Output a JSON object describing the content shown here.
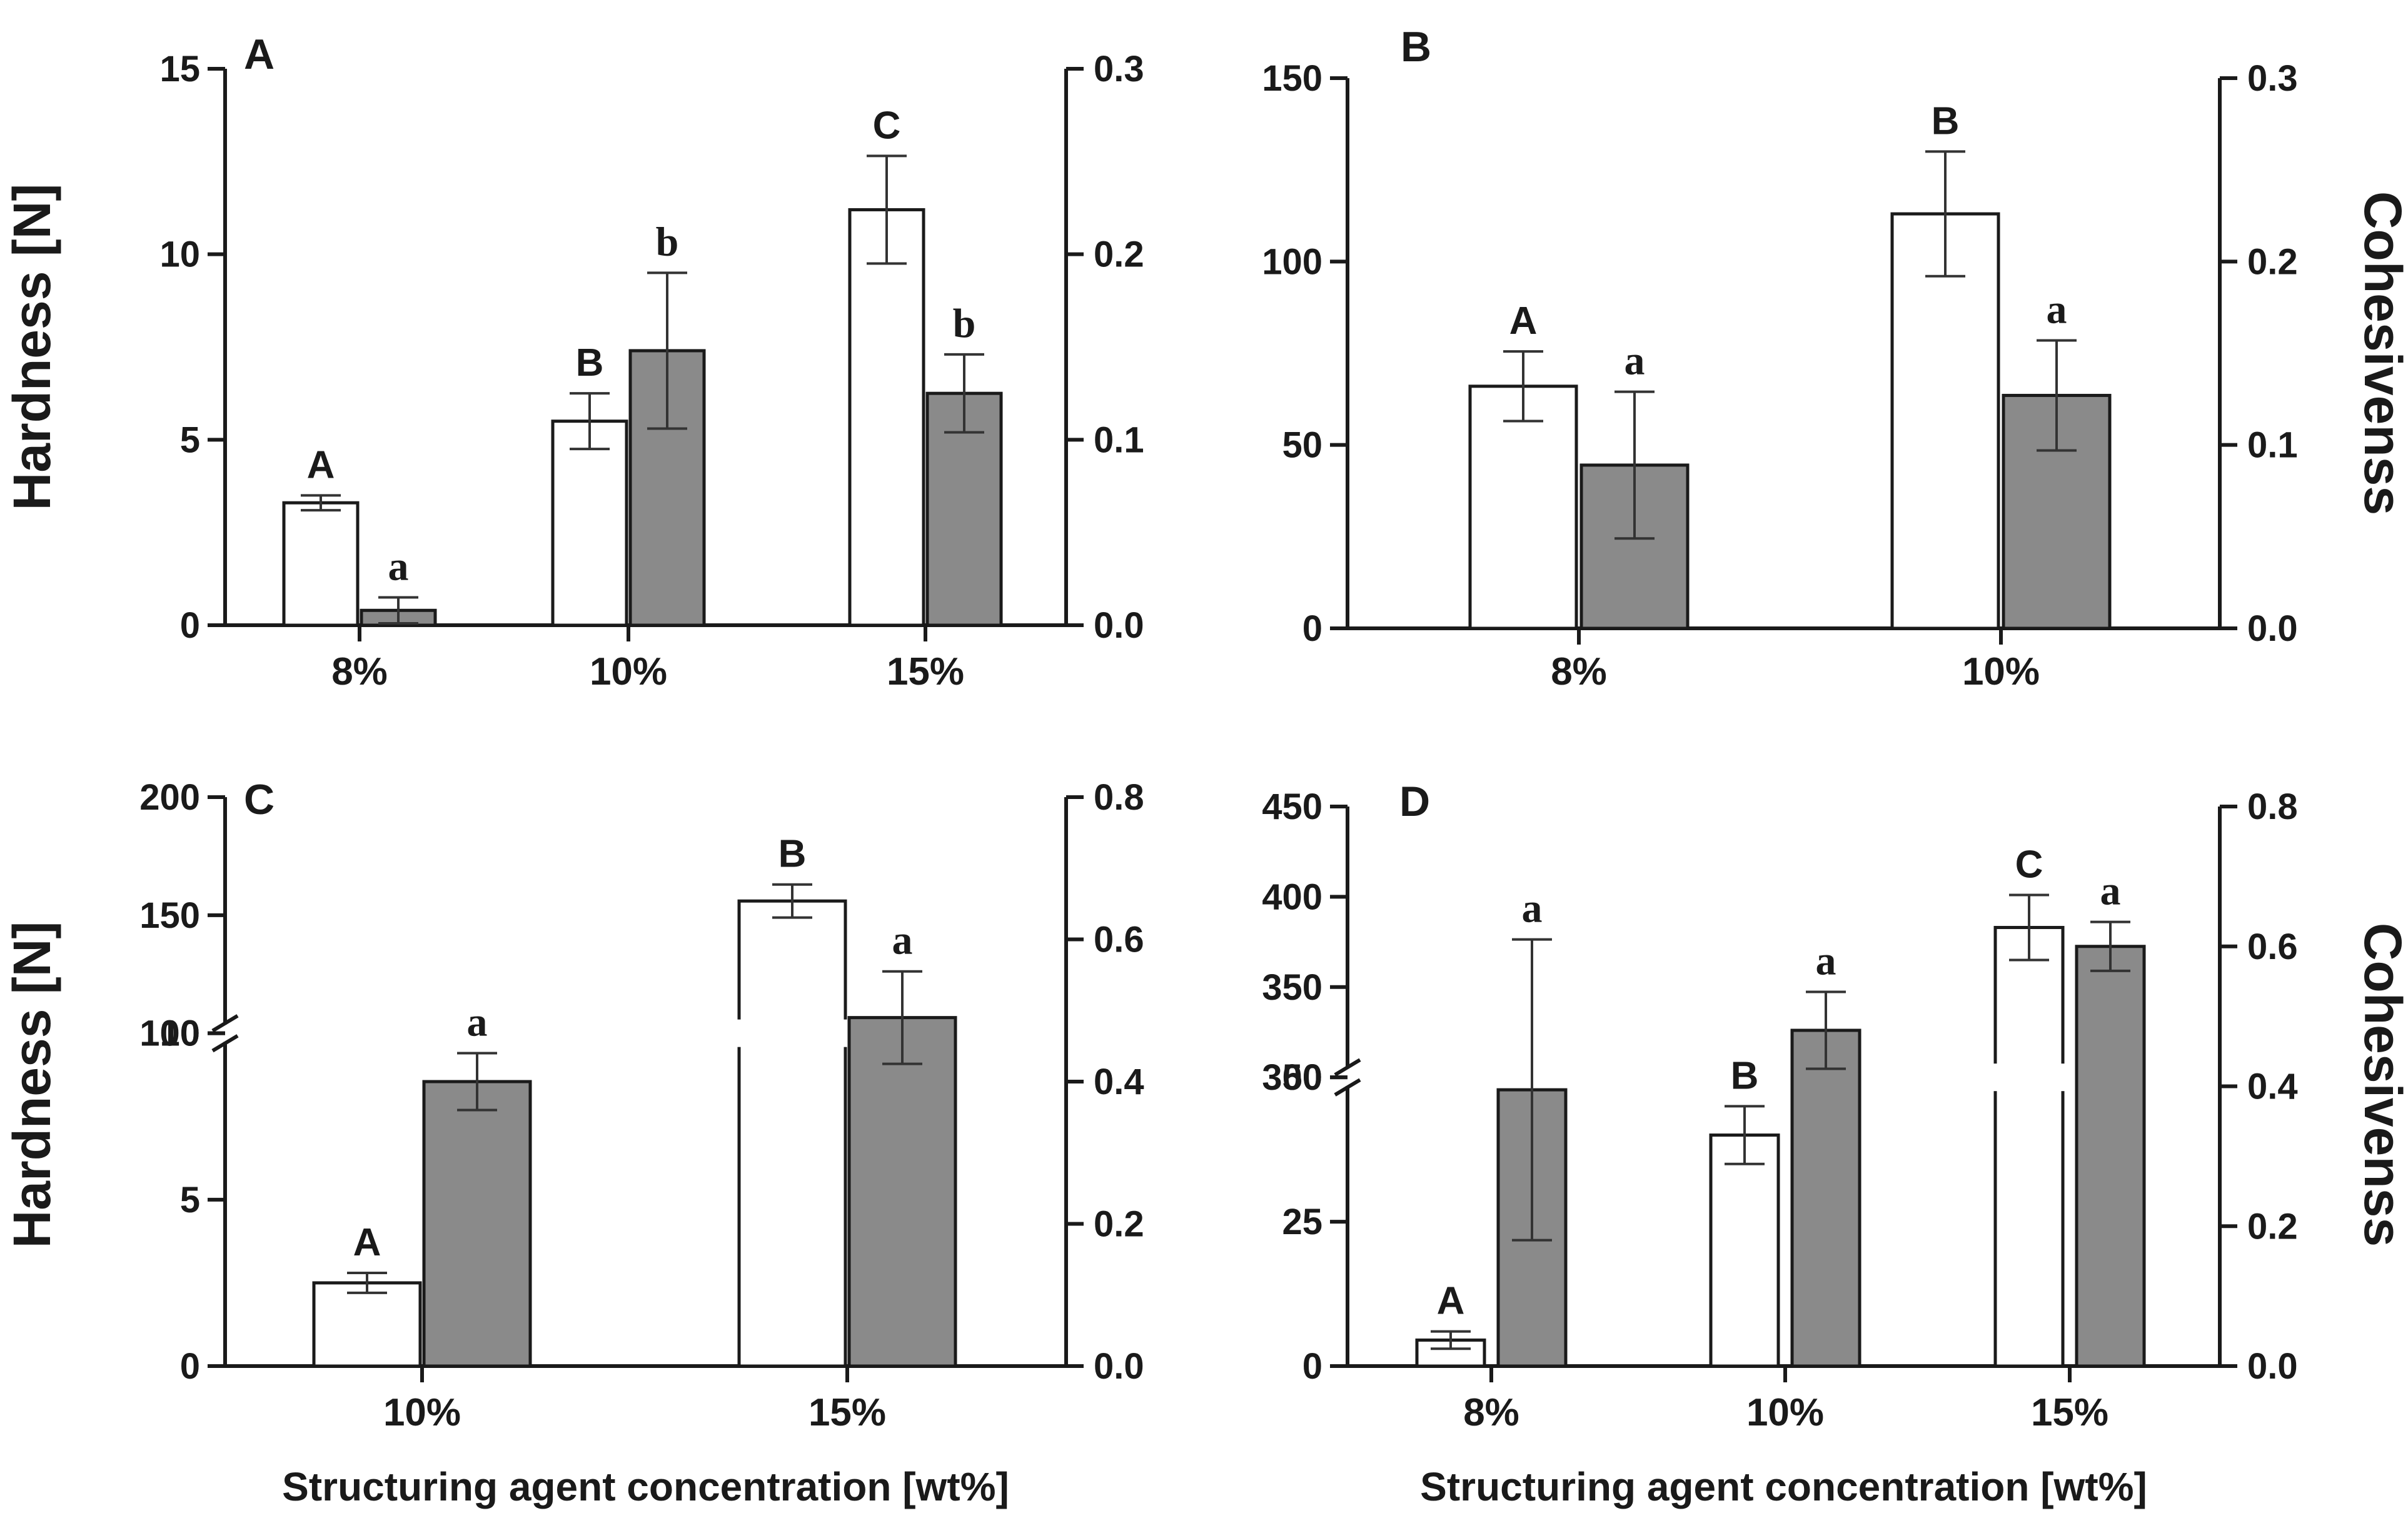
{
  "chart_data": [
    {
      "type": "bar",
      "panel_label": "A",
      "categories": [
        "8%",
        "10%",
        "15%"
      ],
      "ylabel_left": "Hardness [N]",
      "ylabel_right": "",
      "xlabel": "",
      "ylim_left": [
        0,
        15
      ],
      "yticks_left": [
        "0",
        "5",
        "10",
        "15"
      ],
      "ylim_right": [
        0,
        0.3
      ],
      "yticks_right": [
        "0.0",
        "0.1",
        "0.2",
        "0.3"
      ],
      "series": [
        {
          "axis": "left",
          "color": "#ffffff",
          "values": [
            3.3,
            5.5,
            11.2
          ],
          "errors": [
            0.2,
            0.75,
            1.45
          ],
          "labels": [
            "A",
            "B",
            "C"
          ]
        },
        {
          "axis": "right",
          "color": "#8a8a8a",
          "values": [
            0.008,
            0.148,
            0.125
          ],
          "errors": [
            0.007,
            0.042,
            0.021
          ],
          "labels": [
            "a",
            "b",
            "b"
          ]
        }
      ]
    },
    {
      "type": "bar",
      "panel_label": "B",
      "categories": [
        "8%",
        "10%"
      ],
      "ylabel_left": "",
      "ylabel_right": "Cohesivenss",
      "xlabel": "",
      "ylim_left": [
        0,
        150
      ],
      "yticks_left": [
        "0",
        "50",
        "100",
        "150"
      ],
      "ylim_right": [
        0,
        0.3
      ],
      "yticks_right": [
        "0.0",
        "0.1",
        "0.2",
        "0.3"
      ],
      "series": [
        {
          "axis": "left",
          "color": "#ffffff",
          "values": [
            66,
            113
          ],
          "errors": [
            9.5,
            17
          ],
          "labels": [
            "A",
            "B"
          ]
        },
        {
          "axis": "right",
          "color": "#8a8a8a",
          "values": [
            0.089,
            0.127
          ],
          "errors": [
            0.04,
            0.03
          ],
          "labels": [
            "a",
            "a"
          ]
        }
      ]
    },
    {
      "type": "bar",
      "panel_label": "C",
      "categories": [
        "10%",
        "15%"
      ],
      "ylabel_left": "Hardness [N]",
      "ylabel_right": "",
      "xlabel": "Structuring agent concentration [wt%]",
      "ylim_left": [
        0,
        200
      ],
      "axis_break_left": [
        10,
        100
      ],
      "yticks_left": [
        [
          "0",
          0
        ],
        [
          "5",
          5
        ],
        [
          "10",
          10
        ],
        [
          "100",
          100
        ],
        [
          "150",
          150
        ],
        [
          "200",
          200
        ]
      ],
      "ylim_right": [
        0,
        0.8
      ],
      "yticks_right": [
        "0.0",
        "0.2",
        "0.4",
        "0.6",
        "0.8"
      ],
      "series": [
        {
          "axis": "left",
          "color": "#ffffff",
          "values": [
            2.5,
            156
          ],
          "errors": [
            0.3,
            7
          ],
          "labels": [
            "A",
            "B"
          ]
        },
        {
          "axis": "right",
          "color": "#8a8a8a",
          "values": [
            0.4,
            0.49
          ],
          "errors": [
            0.04,
            0.065
          ],
          "labels": [
            "a",
            "a"
          ]
        }
      ]
    },
    {
      "type": "bar",
      "panel_label": "D",
      "categories": [
        "8%",
        "10%",
        "15%"
      ],
      "ylabel_left": "",
      "ylabel_right": "Cohesivenss",
      "xlabel": "Structuring agent concentration [wt%]",
      "ylim_left": [
        0,
        450
      ],
      "axis_break_left": [
        50,
        300
      ],
      "yticks_left": [
        [
          "0",
          0
        ],
        [
          "25",
          25
        ],
        [
          "50",
          50
        ],
        [
          "300",
          300
        ],
        [
          "350",
          350
        ],
        [
          "400",
          400
        ],
        [
          "450",
          450
        ]
      ],
      "ylim_right": [
        0,
        0.8
      ],
      "yticks_right": [
        "0.0",
        "0.2",
        "0.4",
        "0.6",
        "0.8"
      ],
      "series": [
        {
          "axis": "left",
          "color": "#ffffff",
          "values": [
            4.5,
            40,
            383
          ],
          "errors": [
            1.5,
            5,
            18
          ],
          "labels": [
            "A",
            "B",
            "C"
          ]
        },
        {
          "axis": "right",
          "color": "#8a8a8a",
          "values": [
            0.395,
            0.48,
            0.6
          ],
          "errors": [
            0.215,
            0.055,
            0.035
          ],
          "labels": [
            "a",
            "a",
            "a"
          ]
        }
      ]
    }
  ]
}
